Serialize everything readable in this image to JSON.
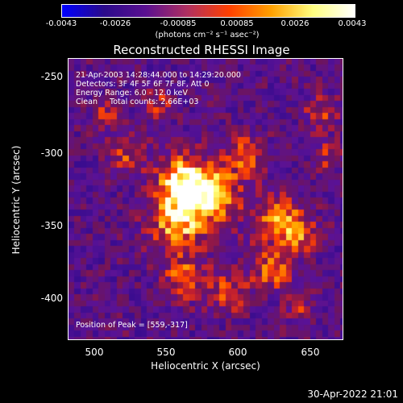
{
  "colorbar": {
    "ticks": [
      "-0.0043",
      "-0.0026",
      "-0.00085",
      "0.00085",
      "0.0026",
      "0.0043"
    ],
    "label": "(photons cm⁻² s⁻¹ asec⁻²)",
    "colors": [
      "#0000ff",
      "#2a0a8a",
      "#5a1090",
      "#b03060",
      "#ff4000",
      "#ffa000",
      "#ffff80",
      "#ffffff"
    ]
  },
  "chart_data": {
    "type": "heatmap",
    "title": "Reconstructed RHESSI Image",
    "xlabel": "Heliocentric X (arcsec)",
    "ylabel": "Heliocentric Y (arcsec)",
    "xlim": [
      478,
      670
    ],
    "ylim": [
      -428,
      -232
    ],
    "xticks": [
      "500",
      "550",
      "600",
      "650"
    ],
    "yticks": [
      "-250",
      "-300",
      "-350",
      "-400"
    ],
    "zlim": [
      -0.0043,
      0.0043
    ],
    "peak": [
      559,
      -317
    ],
    "annotations": [
      "21-Apr-2003 14:28:44.000 to 14:29:20.000",
      "Detectors: 3F 4F 5F 6F 7F 8F, Att 0",
      "Energy Range: 6.0 - 12.0 keV",
      "Clean     Total counts: 2.66E+03"
    ],
    "peak_label": "Position of Peak = [559,-317]"
  },
  "timestamp": "30-Apr-2022 21:01"
}
